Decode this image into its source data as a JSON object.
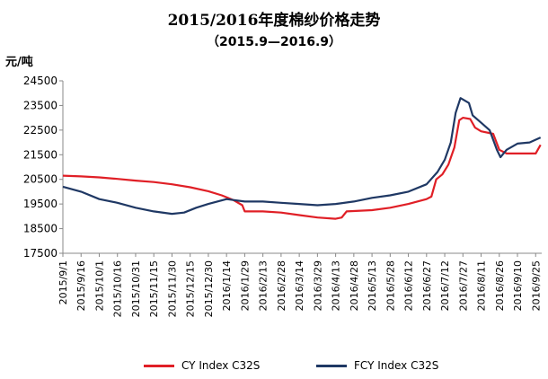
{
  "chart_data": {
    "type": "line",
    "title": "2015/2016年度棉纱价格走势",
    "subtitle": "（2015.9—2016.9）",
    "ylabel": "元/吨",
    "xlabel": "",
    "ylim": [
      17500,
      24500
    ],
    "yticks": [
      17500,
      18500,
      19500,
      20500,
      21500,
      22500,
      23500,
      24500
    ],
    "xlim": [
      "2015-09-01",
      "2016-09-30"
    ],
    "xtick_labels": [
      "2015/9/1",
      "2015/9/16",
      "2015/10/1",
      "2015/10/16",
      "2015/10/31",
      "2015/11/15",
      "2015/11/30",
      "2015/12/15",
      "2015/12/30",
      "2016/1/14",
      "2016/1/29",
      "2016/2/13",
      "2016/2/28",
      "2016/3/14",
      "2016/3/29",
      "2016/4/13",
      "2016/4/28",
      "2016/5/13",
      "2016/5/28",
      "2016/6/12",
      "2016/6/27",
      "2016/7/12",
      "2016/7/27",
      "2016/8/11",
      "2016/8/26",
      "2016/9/10",
      "2016/9/25"
    ],
    "grid": false,
    "legend_position": "bottom",
    "series": [
      {
        "name": "CY Index C32S",
        "color": "#e01f26",
        "points": [
          [
            "2015-09-01",
            20650
          ],
          [
            "2015-09-16",
            20620
          ],
          [
            "2015-10-01",
            20580
          ],
          [
            "2015-10-16",
            20520
          ],
          [
            "2015-10-31",
            20450
          ],
          [
            "2015-11-15",
            20390
          ],
          [
            "2015-11-30",
            20300
          ],
          [
            "2015-12-15",
            20180
          ],
          [
            "2015-12-30",
            20020
          ],
          [
            "2016-01-10",
            19850
          ],
          [
            "2016-01-20",
            19650
          ],
          [
            "2016-01-27",
            19450
          ],
          [
            "2016-01-29",
            19200
          ],
          [
            "2016-02-13",
            19200
          ],
          [
            "2016-02-28",
            19150
          ],
          [
            "2016-03-14",
            19050
          ],
          [
            "2016-03-29",
            18950
          ],
          [
            "2016-04-13",
            18900
          ],
          [
            "2016-04-18",
            18950
          ],
          [
            "2016-04-22",
            19200
          ],
          [
            "2016-05-13",
            19250
          ],
          [
            "2016-05-28",
            19350
          ],
          [
            "2016-06-12",
            19500
          ],
          [
            "2016-06-27",
            19700
          ],
          [
            "2016-07-01",
            19800
          ],
          [
            "2016-07-05",
            20500
          ],
          [
            "2016-07-10",
            20700
          ],
          [
            "2016-07-15",
            21100
          ],
          [
            "2016-07-20",
            21800
          ],
          [
            "2016-07-24",
            22900
          ],
          [
            "2016-07-27",
            23000
          ],
          [
            "2016-08-02",
            22950
          ],
          [
            "2016-08-06",
            22600
          ],
          [
            "2016-08-11",
            22450
          ],
          [
            "2016-08-21",
            22350
          ],
          [
            "2016-08-26",
            21700
          ],
          [
            "2016-09-01",
            21550
          ],
          [
            "2016-09-10",
            21550
          ],
          [
            "2016-09-25",
            21550
          ],
          [
            "2016-09-29",
            21900
          ]
        ]
      },
      {
        "name": "FCY Index C32S",
        "color": "#1f3864",
        "points": [
          [
            "2015-09-01",
            20200
          ],
          [
            "2015-09-16",
            20000
          ],
          [
            "2015-10-01",
            19700
          ],
          [
            "2015-10-16",
            19550
          ],
          [
            "2015-10-31",
            19350
          ],
          [
            "2015-11-15",
            19200
          ],
          [
            "2015-11-30",
            19100
          ],
          [
            "2015-12-10",
            19150
          ],
          [
            "2015-12-20",
            19350
          ],
          [
            "2015-12-30",
            19500
          ],
          [
            "2016-01-14",
            19700
          ],
          [
            "2016-01-29",
            19600
          ],
          [
            "2016-02-13",
            19600
          ],
          [
            "2016-02-28",
            19550
          ],
          [
            "2016-03-14",
            19500
          ],
          [
            "2016-03-29",
            19450
          ],
          [
            "2016-04-13",
            19500
          ],
          [
            "2016-04-28",
            19600
          ],
          [
            "2016-05-13",
            19750
          ],
          [
            "2016-05-28",
            19850
          ],
          [
            "2016-06-12",
            20000
          ],
          [
            "2016-06-27",
            20300
          ],
          [
            "2016-07-06",
            20800
          ],
          [
            "2016-07-12",
            21300
          ],
          [
            "2016-07-17",
            22000
          ],
          [
            "2016-07-21",
            23200
          ],
          [
            "2016-07-25",
            23800
          ],
          [
            "2016-08-01",
            23600
          ],
          [
            "2016-08-04",
            23100
          ],
          [
            "2016-08-11",
            22800
          ],
          [
            "2016-08-18",
            22500
          ],
          [
            "2016-08-24",
            21700
          ],
          [
            "2016-08-27",
            21400
          ],
          [
            "2016-09-01",
            21700
          ],
          [
            "2016-09-10",
            21950
          ],
          [
            "2016-09-20",
            22000
          ],
          [
            "2016-09-29",
            22200
          ]
        ]
      }
    ]
  }
}
